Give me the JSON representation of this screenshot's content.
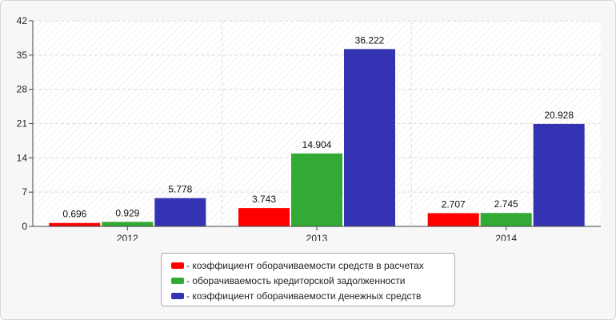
{
  "chart_data": {
    "type": "bar",
    "categories": [
      "2012",
      "2013",
      "2014"
    ],
    "series": [
      {
        "name": "- коэффициент оборачиваемости средств в расчетах",
        "color": "#ff0000",
        "values": [
          0.696,
          3.743,
          2.707
        ]
      },
      {
        "name": "- оборачиваемость кредиторской задолженности",
        "color": "#33aa33",
        "values": [
          0.929,
          14.904,
          2.745
        ]
      },
      {
        "name": "- коэффициент оборачиваемости денежных средств",
        "color": "#3333b3",
        "values": [
          5.778,
          36.222,
          20.928
        ]
      }
    ],
    "value_labels": [
      [
        "0.696",
        "3.743",
        "2.707"
      ],
      [
        "0.929",
        "14.904",
        "2.745"
      ],
      [
        "5.778",
        "36.222",
        "20.928"
      ]
    ],
    "ylim": [
      0,
      42
    ],
    "yticks": [
      0,
      7,
      14,
      21,
      28,
      35,
      42
    ],
    "grid": true,
    "legend_position": "bottom",
    "title": "",
    "xlabel": "",
    "ylabel": ""
  }
}
